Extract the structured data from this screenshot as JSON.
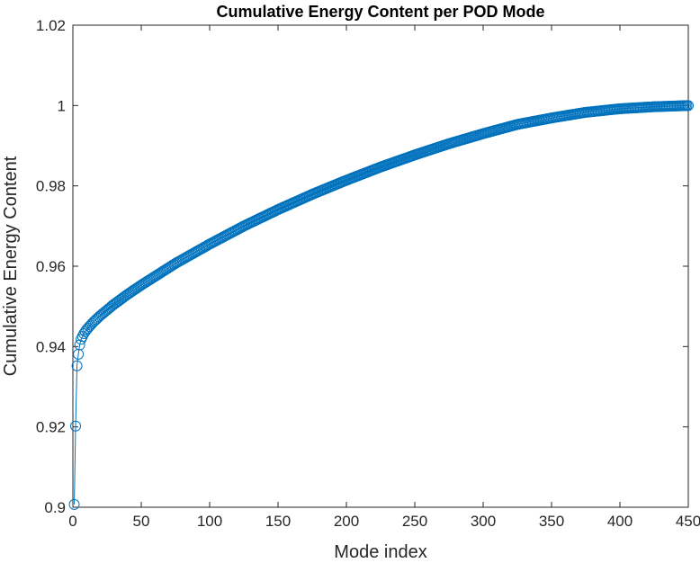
{
  "chart_data": {
    "type": "line",
    "title": "Cumulative Energy Content per POD Mode",
    "xlabel": "Mode index",
    "ylabel": "Cumulative Energy Content",
    "xlim": [
      0,
      450
    ],
    "ylim": [
      0.9,
      1.02
    ],
    "xticks": [
      0,
      50,
      100,
      150,
      200,
      250,
      300,
      350,
      400,
      450
    ],
    "yticks": [
      0.9,
      0.92,
      0.94,
      0.96,
      0.98,
      1,
      1.02
    ],
    "xtick_labels": [
      "0",
      "50",
      "100",
      "150",
      "200",
      "250",
      "300",
      "350",
      "400",
      "450"
    ],
    "ytick_labels": [
      "0.9",
      "0.92",
      "0.94",
      "0.96",
      "0.98",
      "1",
      "1.02"
    ],
    "grid": false,
    "marker": "circle",
    "series_color": "#0072BD",
    "series": [
      {
        "x": [
          1,
          2,
          3,
          4,
          5,
          6,
          8,
          10,
          15,
          20,
          30,
          40,
          50,
          75,
          100,
          125,
          150,
          175,
          200,
          225,
          250,
          275,
          300,
          325,
          350,
          375,
          400,
          425,
          450
        ],
        "values": [
          0.9007,
          0.9202,
          0.9352,
          0.9381,
          0.9404,
          0.9418,
          0.9432,
          0.9442,
          0.9461,
          0.9477,
          0.9505,
          0.953,
          0.9553,
          0.9607,
          0.9655,
          0.97,
          0.9741,
          0.9779,
          0.9814,
          0.9847,
          0.9877,
          0.9905,
          0.993,
          0.9953,
          0.9969,
          0.9983,
          0.9992,
          0.9997,
          1.0
        ]
      }
    ]
  }
}
